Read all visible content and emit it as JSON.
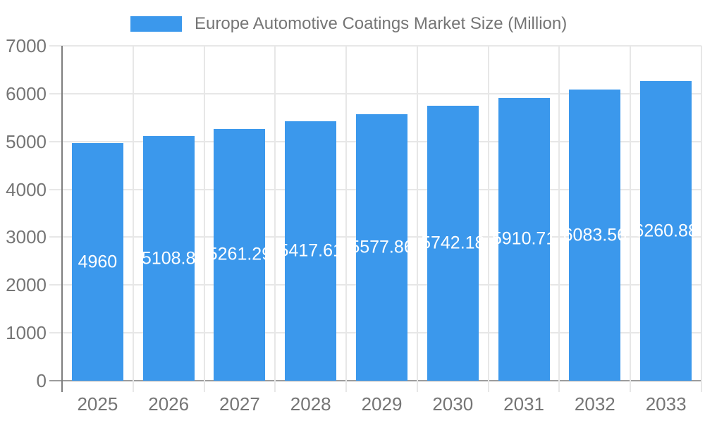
{
  "chart_data": {
    "type": "bar",
    "title": "Europe Automotive Coatings Market Size (Million)",
    "categories": [
      "2025",
      "2026",
      "2027",
      "2028",
      "2029",
      "2030",
      "2031",
      "2032",
      "2033"
    ],
    "series": [
      {
        "name": "Europe Automotive Coatings Market Size (Million)",
        "values": [
          4960,
          5108.8,
          5261.29,
          5417.61,
          5577.86,
          5742.18,
          5910.71,
          6083.56,
          6260.88
        ]
      }
    ],
    "data_labels": [
      "4960",
      "5108.8",
      "5261.29",
      "5417.61",
      "5577.86",
      "5742.18",
      "5910.71",
      "6083.56",
      "6260.88"
    ],
    "xlabel": "",
    "ylabel": "",
    "ylim": [
      0,
      7000
    ],
    "yticks": [
      0,
      1000,
      2000,
      3000,
      4000,
      5000,
      6000,
      7000
    ],
    "ytick_labels": [
      "0",
      "1000",
      "2000",
      "3000",
      "4000",
      "5000",
      "6000",
      "7000"
    ],
    "grid": true,
    "legend_position": "top",
    "colors": {
      "bar": "#3b98ec",
      "grid": "#e7e7e7",
      "axis_line": "#7e7e7e",
      "baseline": "#9c9c9c",
      "text": "#757575",
      "annotation": "#ffffff",
      "background": "#ffffff"
    }
  }
}
